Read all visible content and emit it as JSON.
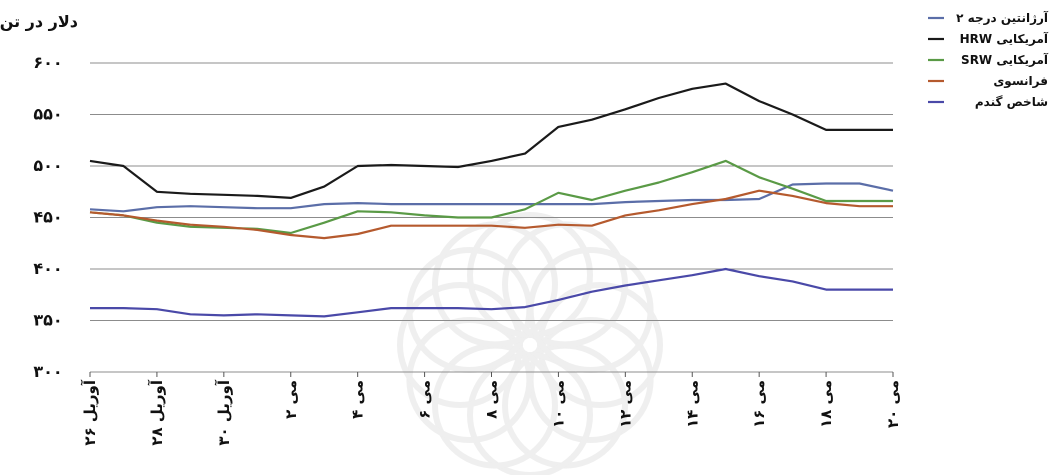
{
  "chart_data": {
    "type": "line",
    "ylabel": "دلار در تن",
    "ylim": [
      300,
      600
    ],
    "grid": "horizontal",
    "legend_position": "top-right",
    "yticks": [
      {
        "value": 600,
        "label": "۶۰۰"
      },
      {
        "value": 550,
        "label": "۵۵۰"
      },
      {
        "value": 500,
        "label": "۵۰۰"
      },
      {
        "value": 450,
        "label": "۴۵۰"
      },
      {
        "value": 400,
        "label": "۴۰۰"
      },
      {
        "value": 350,
        "label": "۳۵۰"
      },
      {
        "value": 300,
        "label": "۳۰۰"
      }
    ],
    "x_labels": [
      "۲۶ آوریل",
      "۲۸ آوریل",
      "۳۰ آوریل",
      "۲ می",
      "۴ می",
      "۶ می",
      "۸ می",
      "۱۰ می",
      "۱۲ می",
      "۱۴ می",
      "۱۶ می",
      "۱۸ می",
      "۲۰ می"
    ],
    "x_points": 25,
    "series": [
      {
        "name": "آرژانتین درجه ۲",
        "color": "#5b6ea8",
        "values": [
          458,
          456,
          460,
          461,
          460,
          459,
          459,
          463,
          464,
          463,
          463,
          463,
          463,
          463,
          463,
          463,
          465,
          466,
          467,
          467,
          468,
          482,
          483,
          483,
          476
        ]
      },
      {
        "name": "HRW آمریکایی",
        "color": "#1a1a1a",
        "values": [
          505,
          500,
          475,
          473,
          472,
          471,
          469,
          480,
          500,
          501,
          500,
          499,
          505,
          512,
          538,
          545,
          555,
          566,
          575,
          580,
          563,
          550,
          535,
          535,
          535
        ]
      },
      {
        "name": "SRW آمریکایی",
        "color": "#5a9a46",
        "values": [
          455,
          452,
          445,
          441,
          440,
          439,
          435,
          445,
          456,
          455,
          452,
          450,
          450,
          458,
          474,
          467,
          476,
          484,
          494,
          505,
          489,
          478,
          466,
          466,
          466
        ]
      },
      {
        "name": "فرانسوی",
        "color": "#b55a2e",
        "values": [
          455,
          452,
          447,
          443,
          441,
          438,
          433,
          430,
          434,
          442,
          442,
          442,
          442,
          440,
          443,
          442,
          452,
          457,
          463,
          468,
          476,
          471,
          464,
          461,
          461
        ]
      },
      {
        "name": "شاخص گندم",
        "color": "#4a49a8",
        "values": [
          362,
          362,
          361,
          356,
          355,
          356,
          355,
          354,
          358,
          362,
          362,
          362,
          361,
          363,
          370,
          378,
          384,
          389,
          394,
          400,
          393,
          388,
          380,
          380,
          380
        ]
      }
    ]
  }
}
